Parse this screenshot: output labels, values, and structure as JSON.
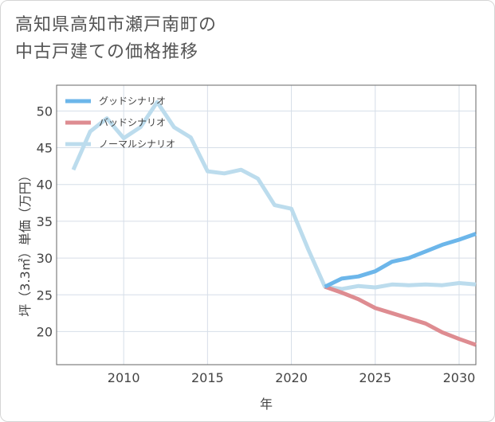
{
  "title_lines": [
    "高知県高知市瀬戸南町の",
    "中古戸建ての価格推移"
  ],
  "chart_data": {
    "type": "line",
    "xlabel": "年",
    "ylabel": "坪（3.3㎡）単価（万円）",
    "xlim": [
      2006,
      2031
    ],
    "ylim": [
      15.5,
      53.5
    ],
    "x_ticks": [
      2010,
      2015,
      2020,
      2025,
      2030
    ],
    "y_ticks": [
      20,
      25,
      30,
      35,
      40,
      45,
      50
    ],
    "grid": true,
    "legend_position": "top-left",
    "series": [
      {
        "name": "グッドシナリオ",
        "color": "#6cb6ea",
        "width": 5,
        "x": [
          2022,
          2023,
          2024,
          2025,
          2026,
          2027,
          2028,
          2029,
          2030,
          2031
        ],
        "y": [
          26.1,
          27.2,
          27.5,
          28.2,
          29.5,
          30.0,
          30.9,
          31.8,
          32.5,
          33.3
        ]
      },
      {
        "name": "バッドシナリオ",
        "color": "#de8c91",
        "width": 5,
        "x": [
          2022,
          2023,
          2024,
          2025,
          2026,
          2027,
          2028,
          2029,
          2030,
          2031
        ],
        "y": [
          26.1,
          25.3,
          24.4,
          23.2,
          22.5,
          21.8,
          21.1,
          19.9,
          19.0,
          18.2
        ]
      },
      {
        "name": "ノーマルシナリオ",
        "color": "#bcdced",
        "width": 5,
        "x": [
          2007,
          2008,
          2009,
          2010,
          2011,
          2012,
          2013,
          2014,
          2015,
          2016,
          2017,
          2018,
          2019,
          2020,
          2021,
          2022,
          2023,
          2024,
          2025,
          2026,
          2027,
          2028,
          2029,
          2030,
          2031
        ],
        "y": [
          42.0,
          47.2,
          49.0,
          46.3,
          47.8,
          51.2,
          47.8,
          46.4,
          41.8,
          41.5,
          42.0,
          40.8,
          37.2,
          36.7,
          31.2,
          26.1,
          25.8,
          26.2,
          26.0,
          26.4,
          26.3,
          26.4,
          26.3,
          26.6,
          26.4
        ]
      }
    ]
  }
}
